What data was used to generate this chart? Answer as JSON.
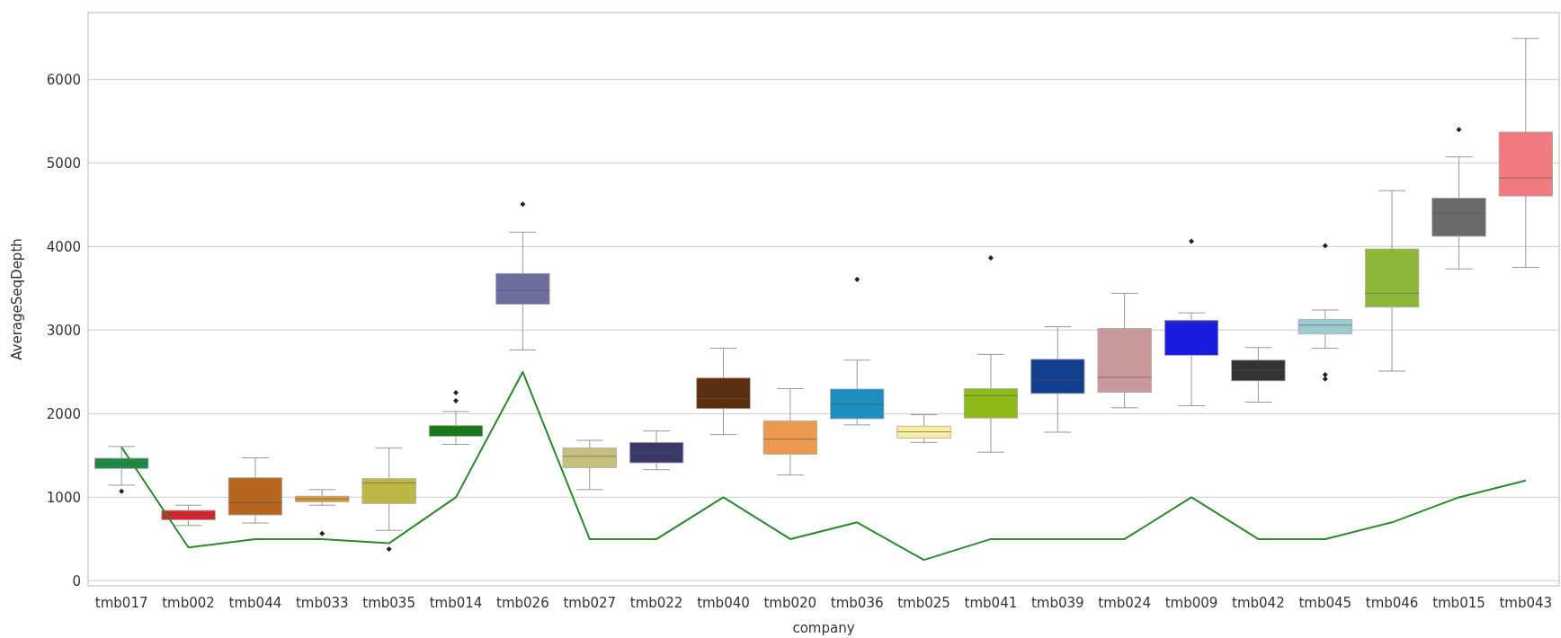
{
  "chart_data": {
    "type": "box",
    "xlabel": "company",
    "ylabel": "AverageSeqDepth",
    "categories": [
      "tmb017",
      "tmb002",
      "tmb044",
      "tmb033",
      "tmb035",
      "tmb014",
      "tmb026",
      "tmb027",
      "tmb022",
      "tmb040",
      "tmb020",
      "tmb036",
      "tmb025",
      "tmb041",
      "tmb039",
      "tmb024",
      "tmb009",
      "tmb042",
      "tmb045",
      "tmb046",
      "tmb015",
      "tmb043"
    ],
    "ylim": [
      -60,
      6800
    ],
    "yticks": [
      0,
      1000,
      2000,
      3000,
      4000,
      5000,
      6000
    ],
    "grid": "y",
    "series": [
      {
        "colors": [
          "#1a8a45",
          "#d8232a",
          "#b5651d",
          "#d99a3a",
          "#bdb845",
          "#137a14",
          "#6e6e9e",
          "#c5c07e",
          "#3a3866",
          "#5c2e10",
          "#eb9a50",
          "#1a8fc0",
          "#f5f0a0",
          "#8fbb1a",
          "#123e8e",
          "#c9999b",
          "#1c1ce0",
          "#333333",
          "#9ccbd0",
          "#8fb83a",
          "#6a6a6a",
          "#f07a7e"
        ],
        "boxes": [
          {
            "low": 1145,
            "q1": 1345,
            "median": 1400,
            "q3": 1467,
            "high": 1608,
            "outliers": [
              1072
            ]
          },
          {
            "low": 663,
            "q1": 731,
            "median": 794,
            "q3": 843,
            "high": 906
          },
          {
            "low": 692,
            "q1": 789,
            "median": 936,
            "q3": 1233,
            "high": 1472
          },
          {
            "low": 906,
            "q1": 945,
            "median": 980,
            "q3": 1014,
            "high": 1092,
            "outliers": [
              565
            ]
          },
          {
            "low": 604,
            "q1": 926,
            "median": 1174,
            "q3": 1223,
            "high": 1589,
            "outliers": [
              380
            ]
          },
          {
            "low": 1633,
            "q1": 1730,
            "median": 1793,
            "q3": 1857,
            "high": 2027,
            "outliers": [
              2154,
              2251
            ]
          },
          {
            "low": 2763,
            "q1": 3309,
            "median": 3475,
            "q3": 3679,
            "high": 4172,
            "outliers": [
              4508
            ]
          },
          {
            "low": 1092,
            "q1": 1355,
            "median": 1491,
            "q3": 1589,
            "high": 1681
          },
          {
            "low": 1330,
            "q1": 1413,
            "median": 1530,
            "q3": 1657,
            "high": 1793
          },
          {
            "low": 1750,
            "q1": 2061,
            "median": 2183,
            "q3": 2427,
            "high": 2783
          },
          {
            "low": 1267,
            "q1": 1516,
            "median": 1696,
            "q3": 1915,
            "high": 2300
          },
          {
            "low": 1866,
            "q1": 1940,
            "median": 2110,
            "q3": 2295,
            "high": 2641,
            "outliers": [
              3606
            ]
          },
          {
            "low": 1657,
            "q1": 1710,
            "median": 1784,
            "q3": 1852,
            "high": 1988
          },
          {
            "low": 1540,
            "q1": 1949,
            "median": 2217,
            "q3": 2300,
            "high": 2710,
            "outliers": [
              3865
            ]
          },
          {
            "low": 1779,
            "q1": 2242,
            "median": 2403,
            "q3": 2651,
            "high": 3041
          },
          {
            "low": 2071,
            "q1": 2256,
            "median": 2437,
            "q3": 3021,
            "high": 3441
          },
          {
            "low": 2096,
            "q1": 2700,
            "median": 3100,
            "q3": 3119,
            "high": 3207,
            "outliers": [
              4064
            ]
          },
          {
            "low": 2139,
            "q1": 2393,
            "median": 2520,
            "q3": 2641,
            "high": 2792
          },
          {
            "low": 2783,
            "q1": 2953,
            "median": 3060,
            "q3": 3129,
            "high": 3241,
            "outliers": [
              2417,
              2466,
              4011
            ]
          },
          {
            "low": 2510,
            "q1": 3275,
            "median": 3441,
            "q3": 3972,
            "high": 4669
          },
          {
            "low": 3733,
            "q1": 4123,
            "median": 4400,
            "q3": 4581,
            "high": 5073,
            "outliers": [
              5400
            ]
          },
          {
            "low": 3752,
            "q1": 4605,
            "median": 4820,
            "q3": 5370,
            "high": 6491
          }
        ]
      },
      {
        "type": "line",
        "color": "#2a8a2a",
        "values": [
          1600,
          400,
          500,
          500,
          450,
          1000,
          2500,
          500,
          500,
          1000,
          500,
          700,
          250,
          500,
          500,
          500,
          1000,
          500,
          500,
          700,
          1000,
          1200
        ]
      }
    ]
  }
}
